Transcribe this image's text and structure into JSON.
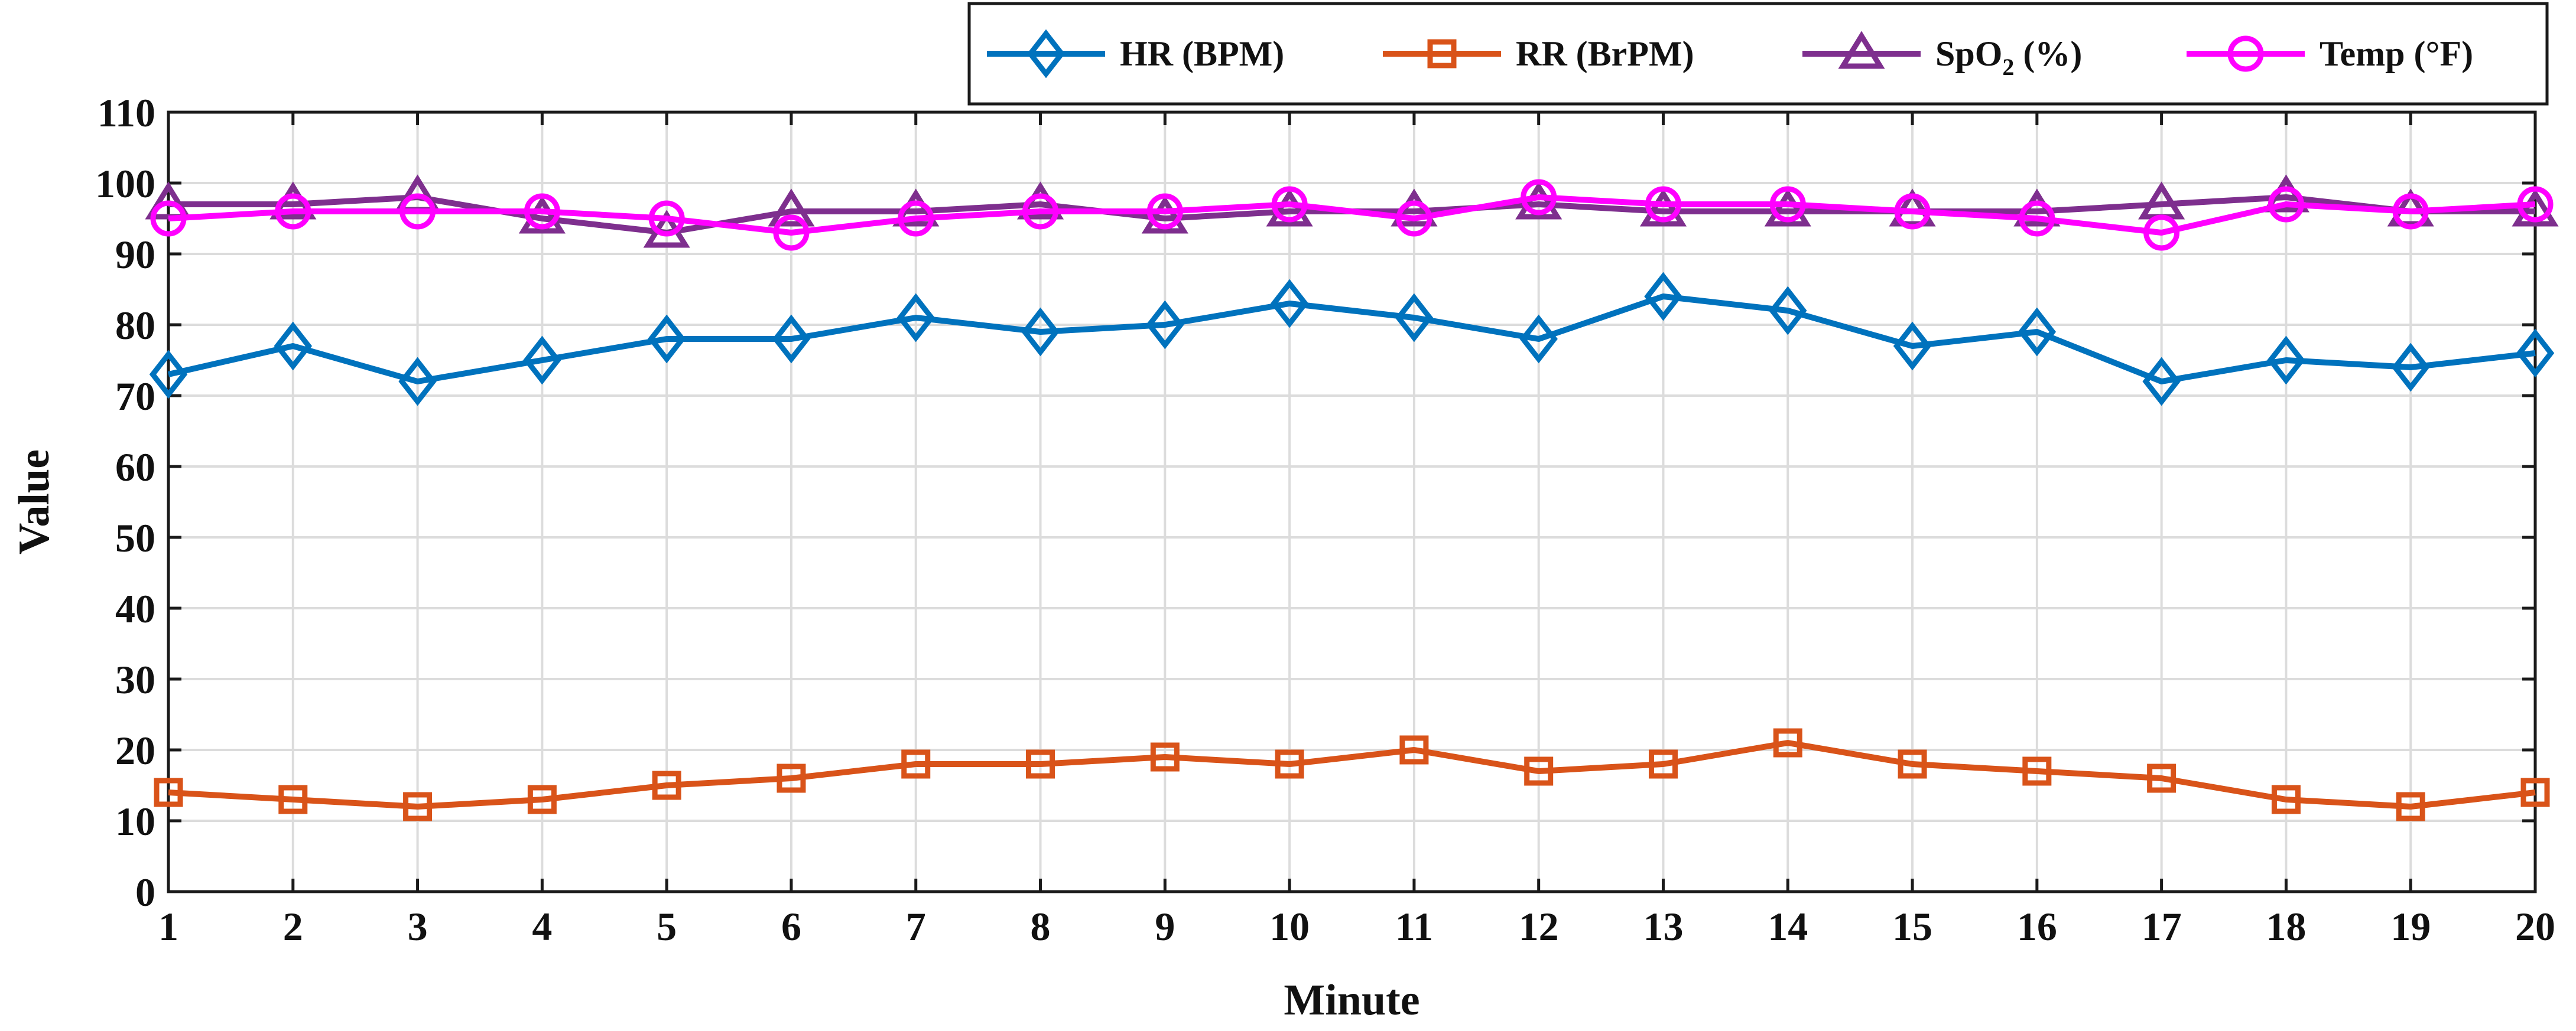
{
  "chart_data": {
    "type": "line",
    "xlabel": "Minute",
    "ylabel": "Value",
    "xlim": [
      1,
      20
    ],
    "ylim": [
      0,
      110
    ],
    "xticks": [
      1,
      2,
      3,
      4,
      5,
      6,
      7,
      8,
      9,
      10,
      11,
      12,
      13,
      14,
      15,
      16,
      17,
      18,
      19,
      20
    ],
    "yticks": [
      0,
      10,
      20,
      30,
      40,
      50,
      60,
      70,
      80,
      90,
      100,
      110
    ],
    "grid": true,
    "legend_position": "top-right",
    "x": [
      1,
      2,
      3,
      4,
      5,
      6,
      7,
      8,
      9,
      10,
      11,
      12,
      13,
      14,
      15,
      16,
      17,
      18,
      19,
      20
    ],
    "series": [
      {
        "name": "HR (BPM)",
        "name_main": "HR (BPM)",
        "name_sub": "",
        "name_tail": "",
        "color": "#0072bd",
        "marker": "diamond",
        "values": [
          73,
          77,
          72,
          75,
          78,
          78,
          81,
          79,
          80,
          83,
          81,
          78,
          84,
          82,
          77,
          79,
          72,
          75,
          74,
          76
        ]
      },
      {
        "name": "RR (BrPM)",
        "name_main": "RR (BrPM)",
        "name_sub": "",
        "name_tail": "",
        "color": "#d95319",
        "marker": "square",
        "values": [
          14,
          13,
          12,
          13,
          15,
          16,
          18,
          18,
          19,
          18,
          20,
          17,
          18,
          21,
          18,
          17,
          16,
          13,
          12,
          14
        ]
      },
      {
        "name": "SpO2 (%)",
        "name_main": "SpO",
        "name_sub": "2",
        "name_tail": " (%)",
        "color": "#7e2f8e",
        "marker": "triangle",
        "values": [
          97,
          97,
          98,
          95,
          93,
          96,
          96,
          97,
          95,
          96,
          96,
          97,
          96,
          96,
          96,
          96,
          97,
          98,
          96,
          96
        ]
      },
      {
        "name": "Temp (°F)",
        "name_main": "Temp (°F)",
        "name_sub": "",
        "name_tail": "",
        "color": "#ff00ff",
        "marker": "circle",
        "values": [
          95,
          96,
          96,
          96,
          95,
          93,
          95,
          96,
          96,
          97,
          95,
          98,
          97,
          97,
          96,
          95,
          93,
          97,
          96,
          97
        ]
      }
    ]
  }
}
